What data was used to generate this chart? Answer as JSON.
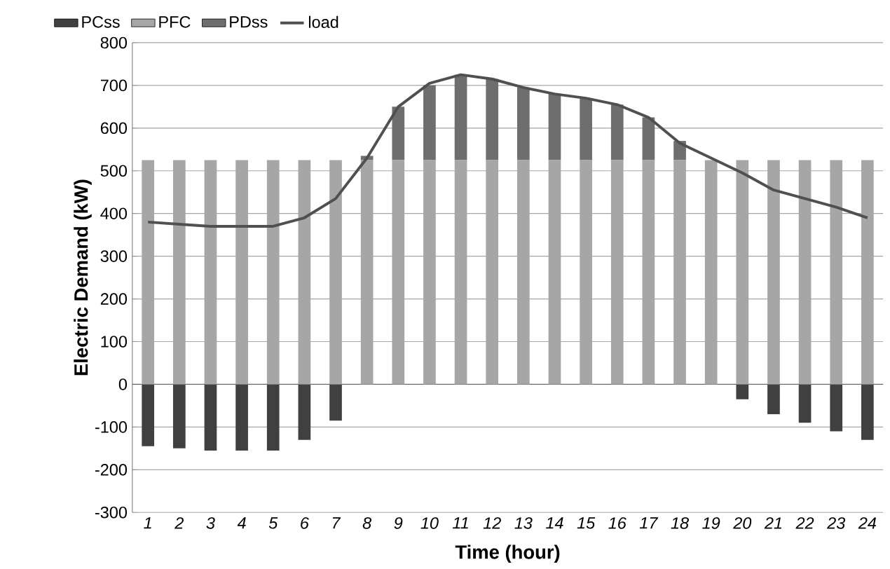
{
  "chart_data": {
    "type": "bar",
    "stacked": true,
    "xlabel": "Time (hour)",
    "ylabel": "Electric Demand (kW)",
    "categories": [
      "1",
      "2",
      "3",
      "4",
      "5",
      "6",
      "7",
      "8",
      "9",
      "10",
      "11",
      "12",
      "13",
      "14",
      "15",
      "16",
      "17",
      "18",
      "19",
      "20",
      "21",
      "22",
      "23",
      "24"
    ],
    "series": [
      {
        "name": "PCss",
        "color": "#404040",
        "values": [
          -145,
          -150,
          -155,
          -155,
          -155,
          -130,
          -85,
          0,
          0,
          0,
          0,
          0,
          0,
          0,
          0,
          0,
          0,
          0,
          0,
          -35,
          -70,
          -90,
          -110,
          -130
        ]
      },
      {
        "name": "PFC",
        "color": "#a6a6a6",
        "values": [
          525,
          525,
          525,
          525,
          525,
          525,
          525,
          525,
          525,
          525,
          525,
          525,
          525,
          525,
          525,
          525,
          525,
          525,
          525,
          525,
          525,
          525,
          525,
          525
        ]
      },
      {
        "name": "PDss",
        "color": "#6e6e6e",
        "values": [
          0,
          0,
          0,
          0,
          0,
          0,
          0,
          10,
          125,
          175,
          200,
          190,
          170,
          155,
          145,
          130,
          100,
          45,
          0,
          0,
          0,
          0,
          0,
          0
        ]
      },
      {
        "name": "load",
        "type": "line",
        "color": "#505050",
        "values": [
          380,
          375,
          370,
          370,
          370,
          390,
          435,
          530,
          650,
          705,
          725,
          715,
          695,
          680,
          670,
          655,
          625,
          565,
          530,
          495,
          455,
          435,
          415,
          390
        ]
      }
    ],
    "ylim": [
      -300,
      800
    ],
    "yticks": [
      -300,
      -200,
      -100,
      0,
      100,
      200,
      300,
      400,
      500,
      600,
      700,
      800
    ],
    "grid": "y",
    "legend": "top"
  }
}
